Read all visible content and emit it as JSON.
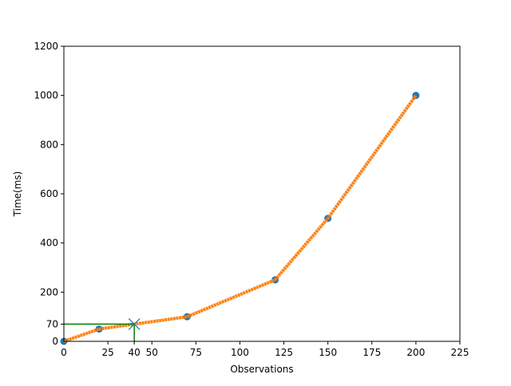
{
  "chart_data": {
    "type": "scatter",
    "xlabel": "Observations",
    "ylabel": "Time(ms)",
    "xlim": [
      0,
      225
    ],
    "xticks": [
      0,
      25,
      40,
      50,
      75,
      100,
      125,
      150,
      175,
      200,
      225
    ],
    "ylim": [
      0,
      1200
    ],
    "yticks": [
      0,
      70,
      200,
      400,
      600,
      800,
      1000,
      1200
    ],
    "series": [
      {
        "kind": "points",
        "color": "#1f77b4",
        "x": [
          0,
          20,
          70,
          120,
          150,
          200
        ],
        "values": [
          0,
          50,
          100,
          250,
          500,
          1000
        ]
      },
      {
        "kind": "line",
        "color": "#ff7f0e",
        "x": [
          0,
          20,
          70,
          120,
          150,
          200
        ],
        "values": [
          0,
          50,
          100,
          250,
          500,
          1000
        ]
      }
    ],
    "marker": {
      "x": 40,
      "y": 70,
      "color": "#1f77b4",
      "guide_color": "#008000"
    }
  }
}
